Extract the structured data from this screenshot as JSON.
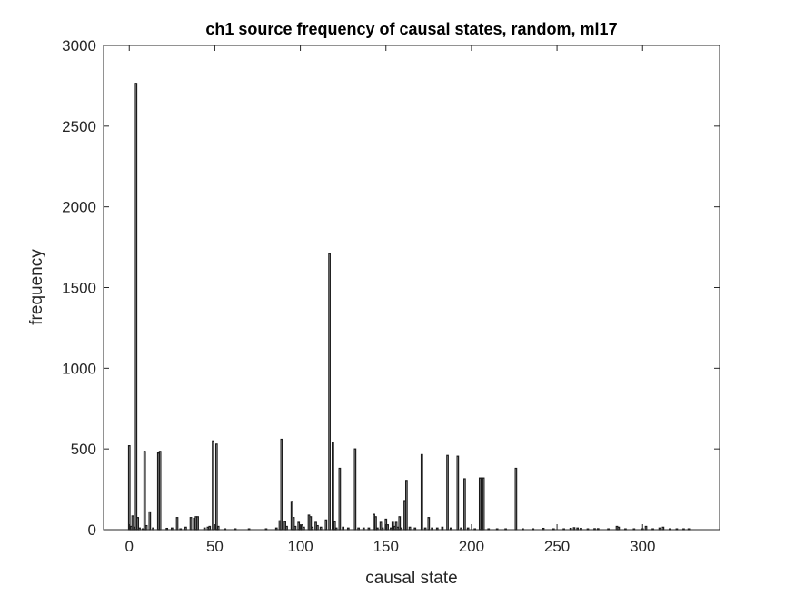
{
  "chart_data": {
    "type": "bar",
    "title": "ch1 source frequency of causal states, random, ml17",
    "xlabel": "causal state",
    "ylabel": "frequency",
    "xlim": [
      -15,
      345
    ],
    "ylim": [
      0,
      3000
    ],
    "xticks": [
      0,
      50,
      100,
      150,
      200,
      250,
      300
    ],
    "yticks": [
      0,
      500,
      1000,
      1500,
      2000,
      2500,
      3000
    ],
    "grid": false,
    "bar_color": "#1a1a1a",
    "bars": [
      {
        "x": 0,
        "y": 520
      },
      {
        "x": 1,
        "y": 20
      },
      {
        "x": 2,
        "y": 85
      },
      {
        "x": 3,
        "y": 15
      },
      {
        "x": 4,
        "y": 2765
      },
      {
        "x": 5,
        "y": 75
      },
      {
        "x": 6,
        "y": 10
      },
      {
        "x": 8,
        "y": 5
      },
      {
        "x": 9,
        "y": 485
      },
      {
        "x": 10,
        "y": 25
      },
      {
        "x": 12,
        "y": 110
      },
      {
        "x": 14,
        "y": 10
      },
      {
        "x": 17,
        "y": 475
      },
      {
        "x": 18,
        "y": 485
      },
      {
        "x": 22,
        "y": 8
      },
      {
        "x": 25,
        "y": 10
      },
      {
        "x": 28,
        "y": 75
      },
      {
        "x": 30,
        "y": 5
      },
      {
        "x": 33,
        "y": 15
      },
      {
        "x": 36,
        "y": 75
      },
      {
        "x": 38,
        "y": 70
      },
      {
        "x": 39,
        "y": 80
      },
      {
        "x": 40,
        "y": 80
      },
      {
        "x": 44,
        "y": 10
      },
      {
        "x": 46,
        "y": 15
      },
      {
        "x": 47,
        "y": 20
      },
      {
        "x": 49,
        "y": 550
      },
      {
        "x": 51,
        "y": 530
      },
      {
        "x": 52,
        "y": 20
      },
      {
        "x": 56,
        "y": 5
      },
      {
        "x": 62,
        "y": 5
      },
      {
        "x": 70,
        "y": 5
      },
      {
        "x": 80,
        "y": 5
      },
      {
        "x": 86,
        "y": 10
      },
      {
        "x": 88,
        "y": 55
      },
      {
        "x": 89,
        "y": 560
      },
      {
        "x": 91,
        "y": 50
      },
      {
        "x": 92,
        "y": 20
      },
      {
        "x": 95,
        "y": 175
      },
      {
        "x": 96,
        "y": 75
      },
      {
        "x": 97,
        "y": 20
      },
      {
        "x": 99,
        "y": 45
      },
      {
        "x": 100,
        "y": 25
      },
      {
        "x": 101,
        "y": 30
      },
      {
        "x": 102,
        "y": 15
      },
      {
        "x": 105,
        "y": 90
      },
      {
        "x": 106,
        "y": 80
      },
      {
        "x": 107,
        "y": 15
      },
      {
        "x": 109,
        "y": 45
      },
      {
        "x": 110,
        "y": 25
      },
      {
        "x": 112,
        "y": 15
      },
      {
        "x": 115,
        "y": 60
      },
      {
        "x": 117,
        "y": 1710
      },
      {
        "x": 119,
        "y": 540
      },
      {
        "x": 120,
        "y": 50
      },
      {
        "x": 121,
        "y": 10
      },
      {
        "x": 123,
        "y": 380
      },
      {
        "x": 125,
        "y": 15
      },
      {
        "x": 128,
        "y": 10
      },
      {
        "x": 132,
        "y": 500
      },
      {
        "x": 134,
        "y": 10
      },
      {
        "x": 137,
        "y": 10
      },
      {
        "x": 140,
        "y": 10
      },
      {
        "x": 143,
        "y": 95
      },
      {
        "x": 144,
        "y": 80
      },
      {
        "x": 145,
        "y": 10
      },
      {
        "x": 147,
        "y": 45
      },
      {
        "x": 148,
        "y": 10
      },
      {
        "x": 150,
        "y": 65
      },
      {
        "x": 151,
        "y": 30
      },
      {
        "x": 153,
        "y": 10
      },
      {
        "x": 154,
        "y": 45
      },
      {
        "x": 155,
        "y": 20
      },
      {
        "x": 156,
        "y": 45
      },
      {
        "x": 157,
        "y": 15
      },
      {
        "x": 158,
        "y": 80
      },
      {
        "x": 159,
        "y": 10
      },
      {
        "x": 161,
        "y": 180
      },
      {
        "x": 162,
        "y": 305
      },
      {
        "x": 164,
        "y": 15
      },
      {
        "x": 167,
        "y": 10
      },
      {
        "x": 171,
        "y": 465
      },
      {
        "x": 173,
        "y": 10
      },
      {
        "x": 175,
        "y": 75
      },
      {
        "x": 177,
        "y": 10
      },
      {
        "x": 180,
        "y": 10
      },
      {
        "x": 183,
        "y": 15
      },
      {
        "x": 186,
        "y": 460
      },
      {
        "x": 188,
        "y": 10
      },
      {
        "x": 192,
        "y": 455
      },
      {
        "x": 194,
        "y": 10
      },
      {
        "x": 196,
        "y": 315
      },
      {
        "x": 198,
        "y": 10
      },
      {
        "x": 202,
        "y": 5
      },
      {
        "x": 205,
        "y": 320
      },
      {
        "x": 206,
        "y": 320
      },
      {
        "x": 207,
        "y": 320
      },
      {
        "x": 210,
        "y": 5
      },
      {
        "x": 215,
        "y": 5
      },
      {
        "x": 220,
        "y": 5
      },
      {
        "x": 226,
        "y": 380
      },
      {
        "x": 230,
        "y": 5
      },
      {
        "x": 236,
        "y": 5
      },
      {
        "x": 242,
        "y": 8
      },
      {
        "x": 248,
        "y": 5
      },
      {
        "x": 254,
        "y": 5
      },
      {
        "x": 258,
        "y": 8
      },
      {
        "x": 260,
        "y": 12
      },
      {
        "x": 262,
        "y": 10
      },
      {
        "x": 264,
        "y": 8
      },
      {
        "x": 268,
        "y": 5
      },
      {
        "x": 272,
        "y": 6
      },
      {
        "x": 274,
        "y": 6
      },
      {
        "x": 280,
        "y": 5
      },
      {
        "x": 285,
        "y": 20
      },
      {
        "x": 286,
        "y": 15
      },
      {
        "x": 290,
        "y": 5
      },
      {
        "x": 295,
        "y": 5
      },
      {
        "x": 300,
        "y": 5
      },
      {
        "x": 302,
        "y": 20
      },
      {
        "x": 306,
        "y": 5
      },
      {
        "x": 310,
        "y": 10
      },
      {
        "x": 312,
        "y": 15
      },
      {
        "x": 316,
        "y": 5
      },
      {
        "x": 320,
        "y": 5
      },
      {
        "x": 324,
        "y": 5
      },
      {
        "x": 327,
        "y": 5
      }
    ]
  }
}
